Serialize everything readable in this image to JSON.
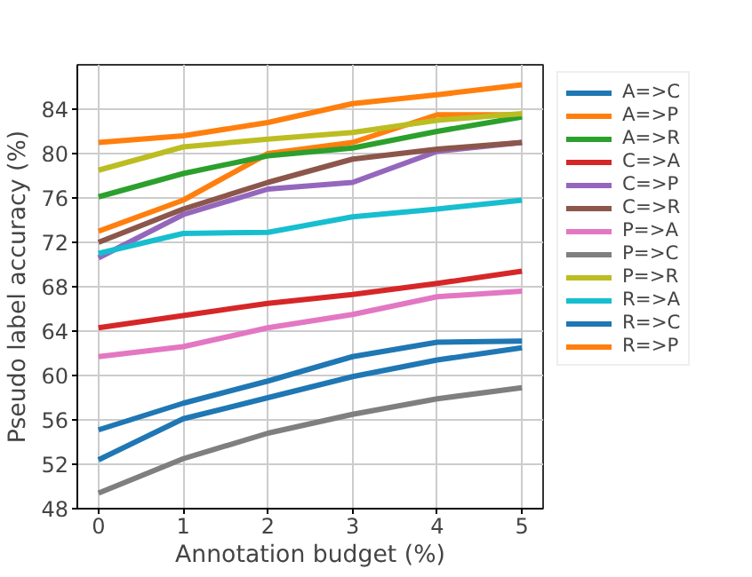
{
  "chart_data": {
    "type": "line",
    "xlabel": "Annotation budget (%)",
    "ylabel": "Pseudo label accuracy (%)",
    "x": [
      0,
      1,
      2,
      3,
      4,
      5
    ],
    "series": [
      {
        "name": "A=>C",
        "color": "#1f77b4",
        "values": [
          55.1,
          57.5,
          59.5,
          61.7,
          63.0,
          63.1
        ]
      },
      {
        "name": "A=>P",
        "color": "#ff7f0e",
        "values": [
          73.0,
          75.8,
          80.0,
          81.0,
          83.5,
          83.5
        ]
      },
      {
        "name": "A=>R",
        "color": "#2ca02c",
        "values": [
          76.1,
          78.2,
          79.8,
          80.5,
          82.0,
          83.3
        ]
      },
      {
        "name": "C=>A",
        "color": "#d62728",
        "values": [
          64.3,
          65.4,
          66.5,
          67.3,
          68.3,
          69.4
        ]
      },
      {
        "name": "C=>P",
        "color": "#9467bd",
        "values": [
          70.6,
          74.5,
          76.8,
          77.4,
          80.2,
          81.0
        ]
      },
      {
        "name": "C=>R",
        "color": "#8c564b",
        "values": [
          72.0,
          75.0,
          77.4,
          79.5,
          80.4,
          81.0
        ]
      },
      {
        "name": "P=>A",
        "color": "#e377c2",
        "values": [
          61.7,
          62.6,
          64.3,
          65.5,
          67.1,
          67.6
        ]
      },
      {
        "name": "P=>C",
        "color": "#7f7f7f",
        "values": [
          49.4,
          52.5,
          54.8,
          56.5,
          57.9,
          58.9
        ]
      },
      {
        "name": "P=>R",
        "color": "#bcbd22",
        "values": [
          78.5,
          80.6,
          81.3,
          81.9,
          83.0,
          83.6
        ]
      },
      {
        "name": "R=>A",
        "color": "#17becf",
        "values": [
          71.0,
          72.8,
          72.9,
          74.3,
          75.0,
          75.8
        ]
      },
      {
        "name": "R=>C",
        "color": "#1f77b4",
        "values": [
          52.4,
          56.1,
          58.0,
          59.9,
          61.4,
          62.5
        ]
      },
      {
        "name": "R=>P",
        "color": "#ff7f0e",
        "values": [
          81.0,
          81.6,
          82.8,
          84.5,
          85.3,
          86.2
        ]
      }
    ],
    "xlim": [
      -0.25,
      5.25
    ],
    "ylim": [
      48,
      88
    ],
    "xticks": [
      0,
      1,
      2,
      3,
      4,
      5
    ],
    "yticks": [
      48,
      52,
      56,
      60,
      64,
      68,
      72,
      76,
      80,
      84
    ],
    "grid": true,
    "legend": "right",
    "marker": "none",
    "line_style": "solid"
  }
}
